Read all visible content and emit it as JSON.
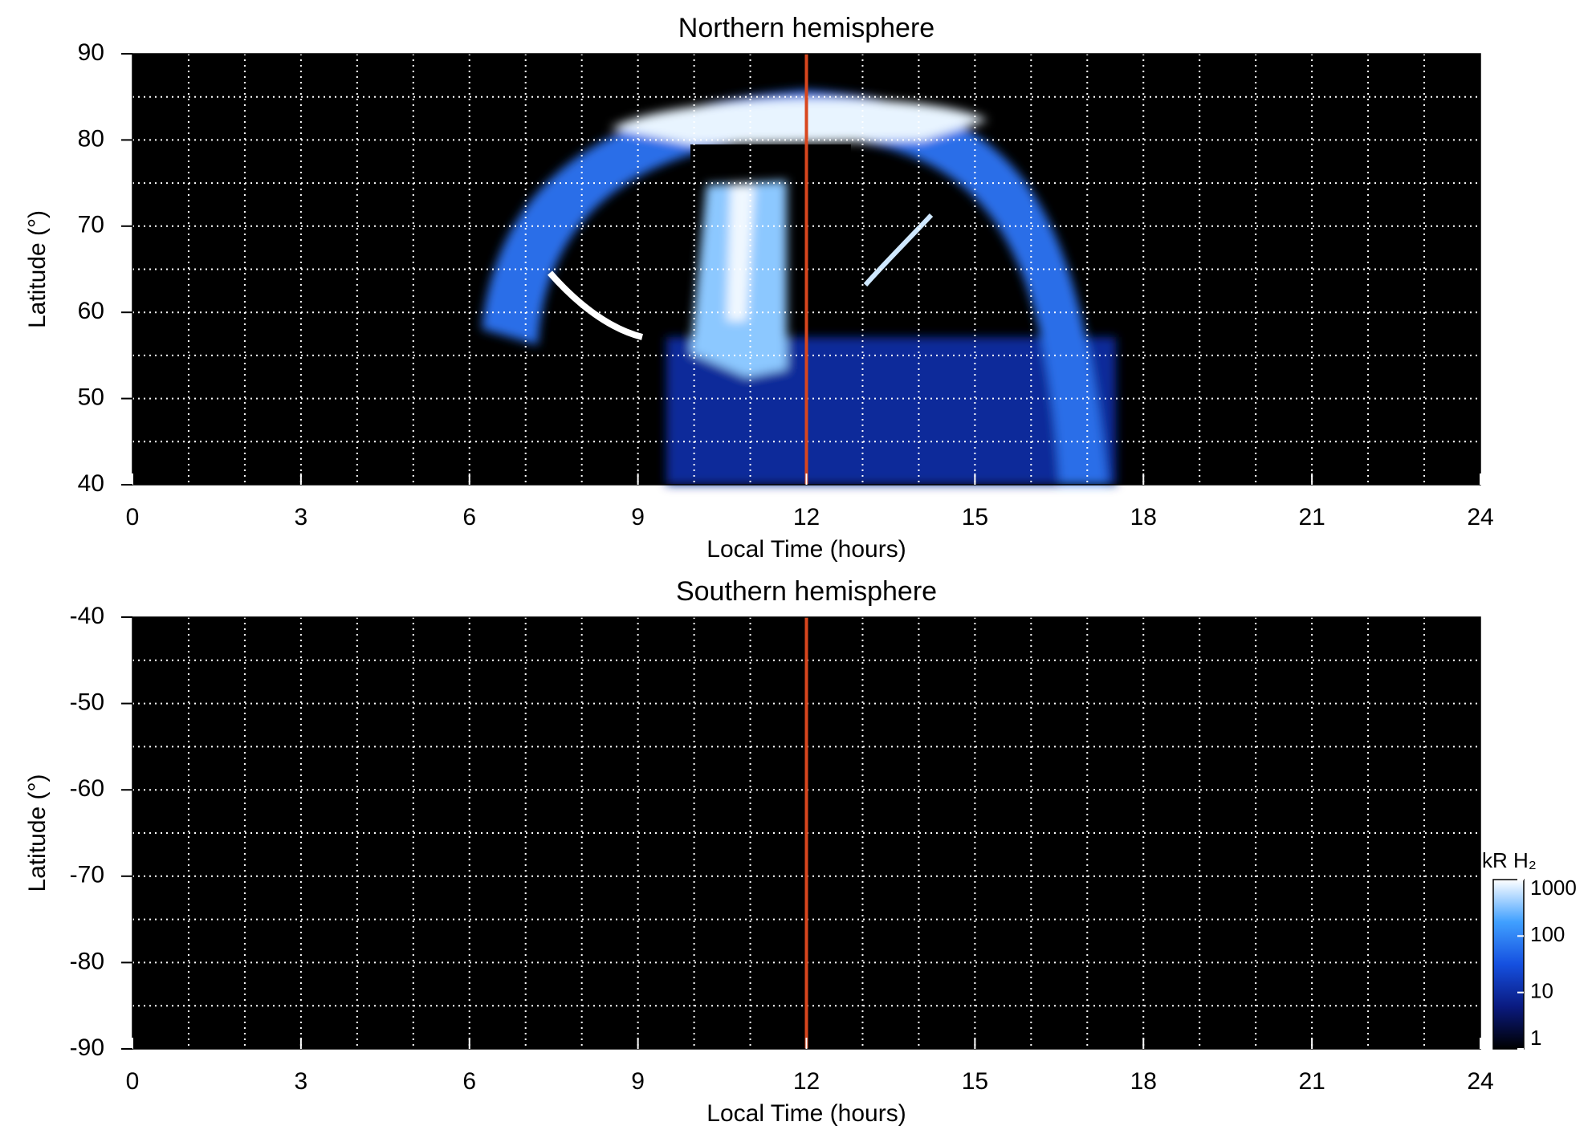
{
  "chart_data": [
    {
      "type": "heatmap",
      "title": "Northern hemisphere",
      "xlabel": "Local Time (hours)",
      "ylabel": "Latitude (°)",
      "xlim": [
        0,
        24
      ],
      "xticks": [
        0,
        3,
        6,
        9,
        12,
        15,
        18,
        21,
        24
      ],
      "xgrid": [
        1,
        2,
        3,
        4,
        5,
        6,
        7,
        8,
        9,
        10,
        11,
        12,
        13,
        14,
        15,
        16,
        17,
        18,
        19,
        20,
        21,
        22,
        23
      ],
      "ylim": [
        40,
        90
      ],
      "yticks": [
        40,
        50,
        60,
        70,
        80,
        90
      ],
      "ygrid": [
        45,
        50,
        55,
        60,
        65,
        70,
        75,
        80,
        85
      ],
      "vline": {
        "x": 12,
        "color": "#d8461e"
      }
    },
    {
      "type": "heatmap",
      "title": "Southern hemisphere",
      "xlabel": "Local Time (hours)",
      "ylabel": "Latitude (°)",
      "xlim": [
        0,
        24
      ],
      "xticks": [
        0,
        3,
        6,
        9,
        12,
        15,
        18,
        21,
        24
      ],
      "xgrid": [
        1,
        2,
        3,
        4,
        5,
        6,
        7,
        8,
        9,
        10,
        11,
        12,
        13,
        14,
        15,
        16,
        17,
        18,
        19,
        20,
        21,
        22,
        23
      ],
      "ylim": [
        -90,
        -40
      ],
      "yticks": [
        -40,
        -50,
        -60,
        -70,
        -80,
        -90
      ],
      "ygrid": [
        -45,
        -50,
        -55,
        -60,
        -65,
        -70,
        -75,
        -80,
        -85
      ],
      "vline": {
        "x": 12,
        "color": "#d8461e"
      },
      "colorbar": {
        "label": "kR H₂",
        "log": true,
        "lim": [
          1,
          1000
        ],
        "ticks": [
          1,
          10,
          100,
          1000
        ],
        "colors": [
          "#000000",
          "#0a1a80",
          "#1550e0",
          "#40a0ff",
          "#ffffff"
        ]
      }
    }
  ]
}
